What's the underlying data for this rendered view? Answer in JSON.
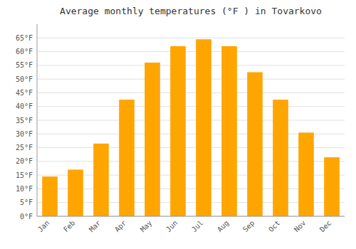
{
  "chart_data": {
    "type": "bar",
    "title": "Average monthly temperatures (°F ) in Tovarkovo",
    "categories": [
      "Jan",
      "Feb",
      "Mar",
      "Apr",
      "May",
      "Jun",
      "Jul",
      "Aug",
      "Sep",
      "Oct",
      "Nov",
      "Dec"
    ],
    "values": [
      14.5,
      17.0,
      26.5,
      42.5,
      56.0,
      62.0,
      64.5,
      62.0,
      52.5,
      42.5,
      30.5,
      21.5
    ],
    "color": "#FFA500",
    "ylim": [
      0,
      70
    ],
    "yticks": [
      {
        "value": 0,
        "label": "0°F"
      },
      {
        "value": 5,
        "label": "5°F"
      },
      {
        "value": 10,
        "label": "10°F"
      },
      {
        "value": 15,
        "label": "15°F"
      },
      {
        "value": 20,
        "label": "20°F"
      },
      {
        "value": 25,
        "label": "25°F"
      },
      {
        "value": 30,
        "label": "30°F"
      },
      {
        "value": 35,
        "label": "35°F"
      },
      {
        "value": 40,
        "label": "40°F"
      },
      {
        "value": 45,
        "label": "45°F"
      },
      {
        "value": 50,
        "label": "50°F"
      },
      {
        "value": 55,
        "label": "55°F"
      },
      {
        "value": 60,
        "label": "60°F"
      },
      {
        "value": 65,
        "label": "65°F"
      }
    ],
    "grid": true
  }
}
